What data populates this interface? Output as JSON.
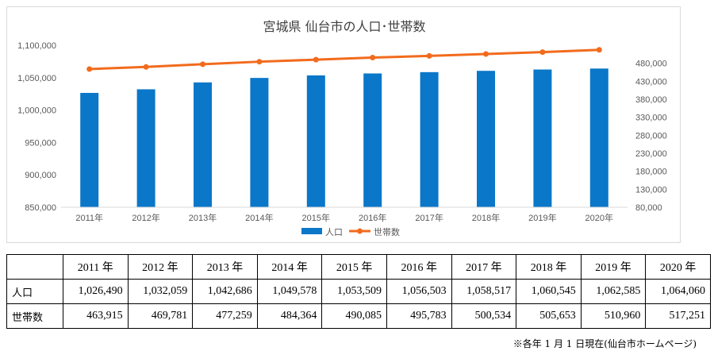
{
  "chart_data": {
    "type": "bar+line",
    "title": "宮城県 仙台市の人口･世帯数",
    "categories": [
      "2011年",
      "2012年",
      "2013年",
      "2014年",
      "2015年",
      "2016年",
      "2017年",
      "2018年",
      "2019年",
      "2020年"
    ],
    "series": [
      {
        "name": "人口",
        "type": "bar",
        "axis": "left",
        "color": "#0a77c9",
        "values": [
          1026490,
          1032059,
          1042686,
          1049578,
          1053509,
          1056503,
          1058517,
          1060545,
          1062585,
          1064060
        ]
      },
      {
        "name": "世帯数",
        "type": "line",
        "axis": "right",
        "color": "#f26b1d",
        "values": [
          463915,
          469781,
          477259,
          484364,
          490085,
          495783,
          500534,
          505653,
          510960,
          517251
        ]
      }
    ],
    "y_left": {
      "min": 850000,
      "max": 1100000,
      "step": 50000,
      "ticks": [
        "850,000",
        "900,000",
        "950,000",
        "1,000,000",
        "1,050,000",
        "1,100,000"
      ]
    },
    "y_right": {
      "min": 80000,
      "max": 530000,
      "step": 50000,
      "ticks": [
        "80,000",
        "130,000",
        "180,000",
        "230,000",
        "280,000",
        "330,000",
        "380,000",
        "430,000",
        "480,000"
      ]
    },
    "grid": false,
    "legend_position": "bottom"
  },
  "table": {
    "headers": [
      "2011 年",
      "2012 年",
      "2013 年",
      "2014 年",
      "2015 年",
      "2016 年",
      "2017 年",
      "2018 年",
      "2019 年",
      "2020 年"
    ],
    "rows": [
      {
        "label": "人口",
        "values": [
          "1,026,490",
          "1,032,059",
          "1,042,686",
          "1,049,578",
          "1,053,509",
          "1,056,503",
          "1,058,517",
          "1,060,545",
          "1,062,585",
          "1,064,060"
        ]
      },
      {
        "label": "世帯数",
        "values": [
          "463,915",
          "469,781",
          "477,259",
          "484,364",
          "490,085",
          "495,783",
          "500,534",
          "505,653",
          "510,960",
          "517,251"
        ]
      }
    ]
  },
  "source_note": "※各年 1 月 1 日現在(仙台市ホームページ)"
}
